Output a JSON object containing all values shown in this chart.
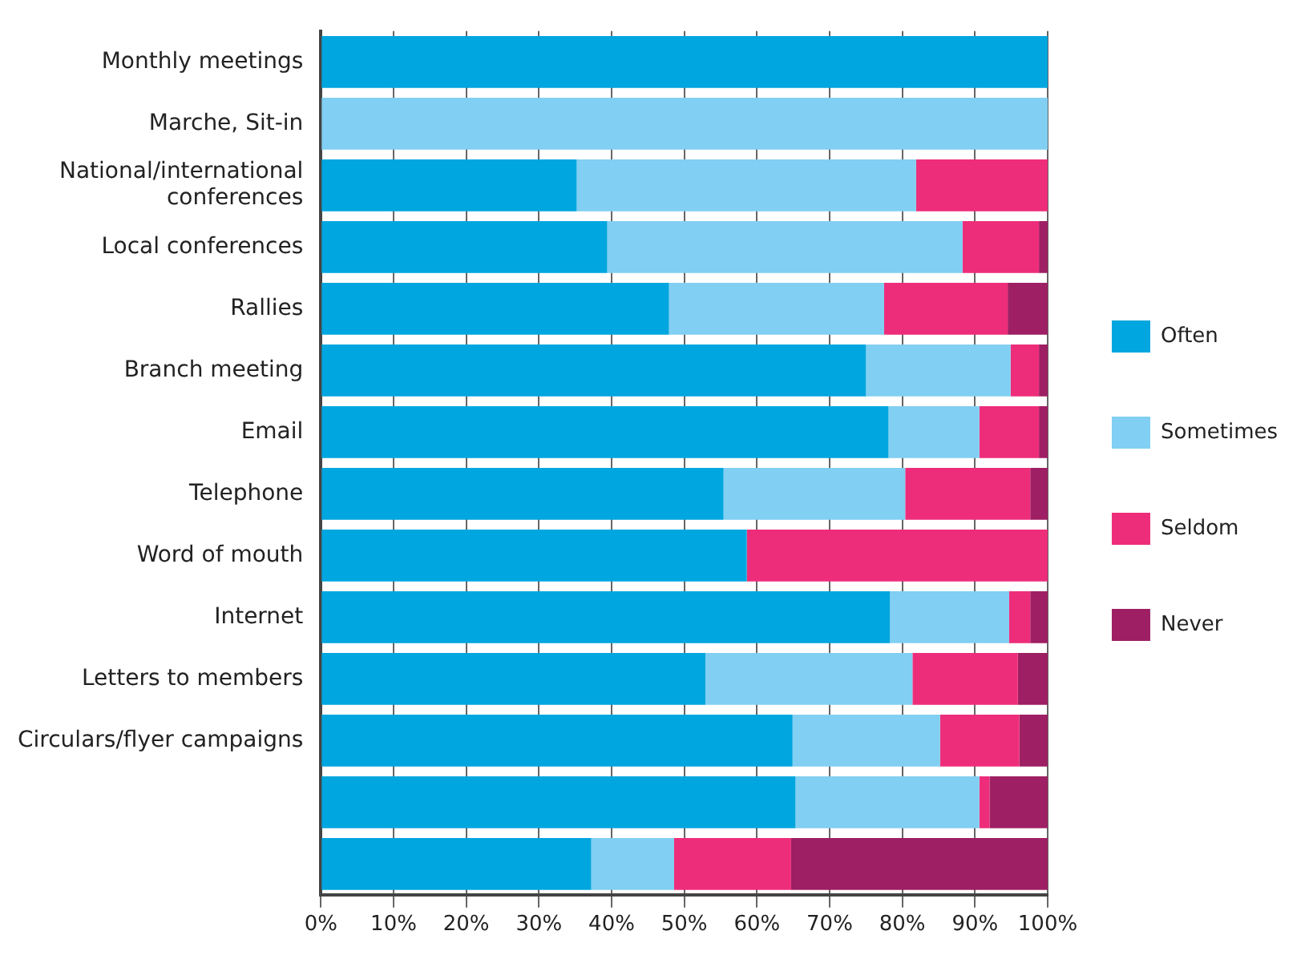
{
  "chart_data": {
    "type": "bar",
    "orientation": "horizontal",
    "stacked": true,
    "categories": [
      "Monthly meetings",
      "Marche, Sit-in",
      "National/international conferences",
      "Local conferences",
      "Rallies",
      "Branch meeting",
      "Email",
      "Telephone",
      "Word of mouth",
      "Internet",
      "Letters to members",
      "Circulars/flyer campaigns",
      null,
      null
    ],
    "series": [
      {
        "name": "Often",
        "color": "#00a6df",
        "values": [
          100,
          0,
          35.2,
          39.4,
          47.9,
          75.0,
          78.1,
          55.4,
          58.6,
          78.3,
          52.9,
          64.9,
          65.3,
          37.2
        ]
      },
      {
        "name": "Sometimes",
        "color": "#81cff2",
        "values": [
          0,
          100,
          46.7,
          48.9,
          29.6,
          19.9,
          12.5,
          25.0,
          0,
          16.4,
          28.5,
          20.3,
          25.3,
          11.4
        ]
      },
      {
        "name": "Seldom",
        "color": "#ee2d7a",
        "values": [
          0,
          0,
          18.1,
          10.5,
          17.0,
          3.9,
          8.2,
          17.2,
          41.4,
          2.9,
          14.5,
          10.9,
          1.4,
          16.1
        ]
      },
      {
        "name": "Never",
        "color": "#9e1f63",
        "values": [
          0,
          0,
          0,
          1.2,
          5.5,
          1.2,
          1.2,
          2.4,
          0,
          2.4,
          4.1,
          3.9,
          8.0,
          35.3
        ]
      }
    ],
    "xlim": [
      0,
      100
    ],
    "xticks": [
      {
        "value": 0,
        "label": "0%"
      },
      {
        "value": 10,
        "label": "10%"
      },
      {
        "value": 20,
        "label": "20%"
      },
      {
        "value": 30,
        "label": "30%"
      },
      {
        "value": 40,
        "label": "40%"
      },
      {
        "value": 50,
        "label": "50%"
      },
      {
        "value": 60,
        "label": "60%"
      },
      {
        "value": 70,
        "label": "70%"
      },
      {
        "value": 80,
        "label": "80%"
      },
      {
        "value": 90,
        "label": "90%"
      },
      {
        "value": 100,
        "label": "100%"
      }
    ],
    "grid": "x",
    "legend": "right"
  }
}
